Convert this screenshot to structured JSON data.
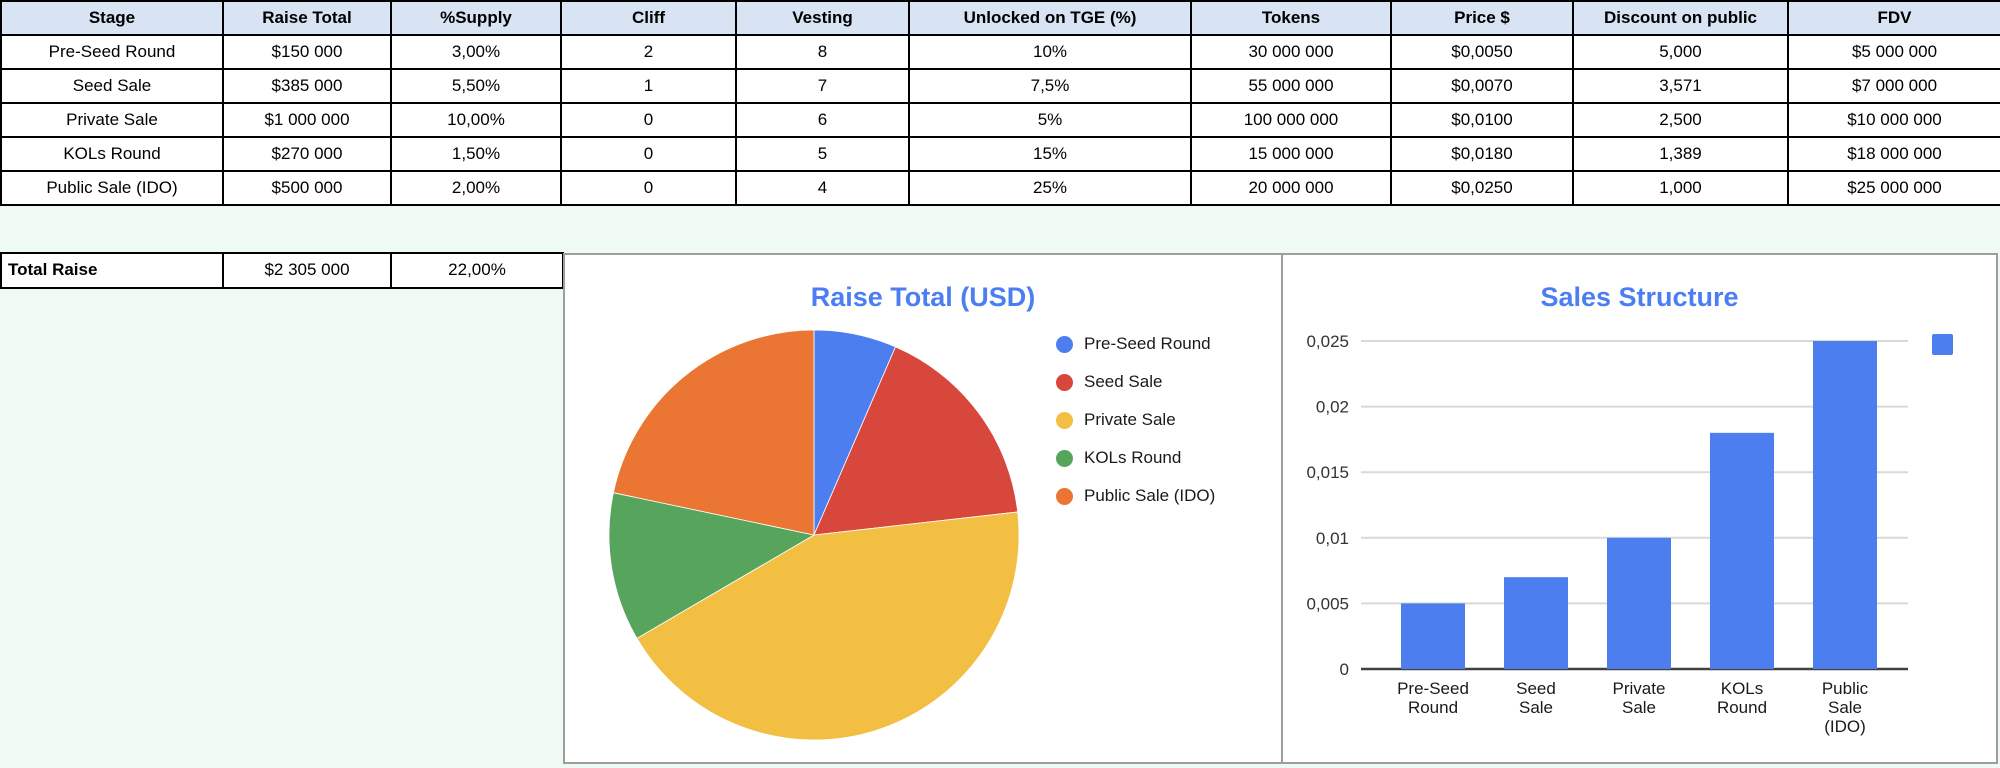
{
  "table": {
    "columns": [
      "Stage",
      "Raise Total",
      "%Supply",
      "Cliff",
      "Vesting",
      "Unlocked on TGE (%)",
      "Tokens",
      "Price $",
      "Discount on public",
      "FDV"
    ],
    "rows": [
      [
        "Pre-Seed Round",
        "$150 000",
        "3,00%",
        "2",
        "8",
        "10%",
        "30 000 000",
        "$0,0050",
        "5,000",
        "$5 000 000"
      ],
      [
        "Seed Sale",
        "$385 000",
        "5,50%",
        "1",
        "7",
        "7,5%",
        "55 000 000",
        "$0,0070",
        "3,571",
        "$7 000 000"
      ],
      [
        "Private Sale",
        "$1 000 000",
        "10,00%",
        "0",
        "6",
        "5%",
        "100 000 000",
        "$0,0100",
        "2,500",
        "$10 000 000"
      ],
      [
        "KOLs Round",
        "$270 000",
        "1,50%",
        "0",
        "5",
        "15%",
        "15 000 000",
        "$0,0180",
        "1,389",
        "$18 000 000"
      ],
      [
        "Public Sale (IDO)",
        "$500 000",
        "2,00%",
        "0",
        "4",
        "25%",
        "20 000 000",
        "$0,0250",
        "1,000",
        "$25 000 000"
      ]
    ]
  },
  "total": {
    "label": "Total Raise",
    "raise": "$2 305 000",
    "supply": "22,00%"
  },
  "colors": {
    "background": "#effaf3",
    "header_fill": "#d8e3f3",
    "table_border": "#000000",
    "chart_border": "#9e9e9e",
    "title_blue": "#4c7ef3",
    "series_blue": "#4d7ef0",
    "grid_line": "#d9d9d9",
    "axis_line": "#424242",
    "text_dark": "#1a1a1a"
  },
  "chart_data": [
    {
      "type": "pie",
      "title": "Raise Total (USD)",
      "labels": [
        "Pre-Seed Round",
        "Seed Sale",
        "Private Sale",
        "KOLs Round",
        "Public Sale (IDO)"
      ],
      "values": [
        150000,
        385000,
        1000000,
        270000,
        500000
      ],
      "colors": [
        "#4d7ef0",
        "#d8473c",
        "#f2bf42",
        "#57a45c",
        "#eb7532"
      ],
      "legend_position": "right",
      "start_angle_deg": 0,
      "direction": "clockwise"
    },
    {
      "type": "bar",
      "title": "Sales Structure",
      "categories": [
        "Pre-Seed Round",
        "Seed Sale",
        "Private Sale",
        "KOLs Round",
        "Public Sale (IDO)"
      ],
      "values": [
        0.005,
        0.007,
        0.01,
        0.018,
        0.025
      ],
      "bar_color": "#4d7ef0",
      "ylim": [
        0,
        0.025
      ],
      "yticks": [
        {
          "v": 0,
          "label": "0"
        },
        {
          "v": 0.005,
          "label": "0,005"
        },
        {
          "v": 0.01,
          "label": "0,01"
        },
        {
          "v": 0.015,
          "label": "0,015"
        },
        {
          "v": 0.02,
          "label": "0,02"
        },
        {
          "v": 0.025,
          "label": "0,025"
        }
      ],
      "grid": true,
      "legend_position": "right",
      "legend_marker_only": true
    }
  ]
}
